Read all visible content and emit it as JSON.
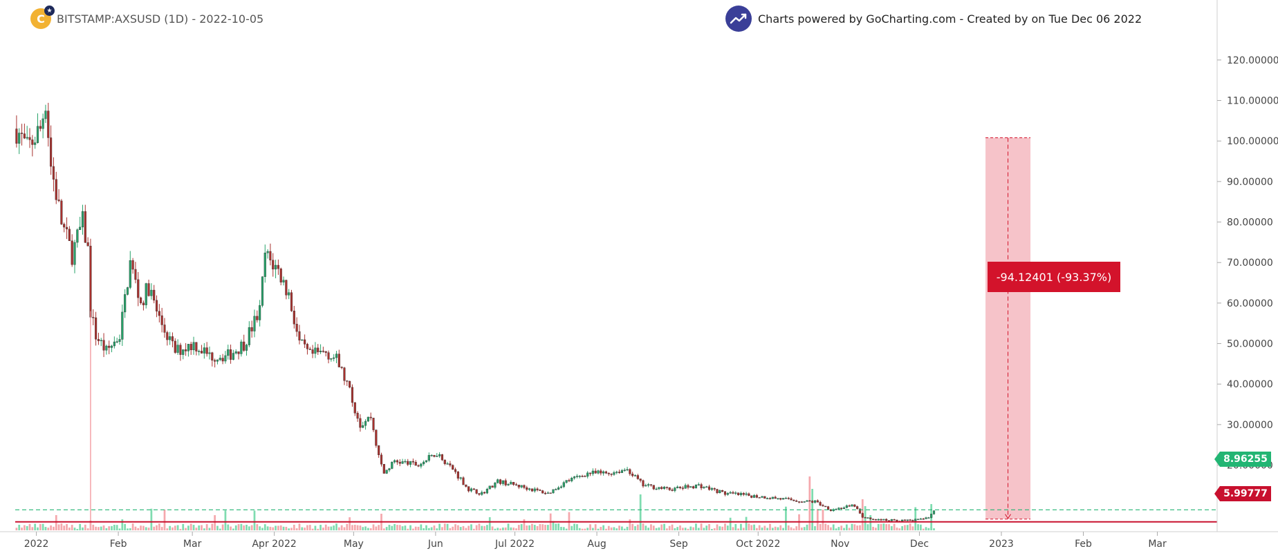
{
  "header": {
    "symbol_line": "BITSTAMP:AXSUSD (1D) - 2022-10-05",
    "credit": "Charts powered by GoCharting.com - Created by  on Tue Dec 06 2022"
  },
  "measure_label": "-94.12401 (-93.37%)",
  "price_tags": {
    "current": "8.96255",
    "low": "5.99777"
  },
  "colors": {
    "up": "#26a269",
    "down": "#a8312e",
    "volume_up": "#7fdcb0",
    "volume_down": "#f5a8ad",
    "measure_fill": "#f4b8c0",
    "measure_box": "#d3132b",
    "current_line": "#22b573",
    "low_line": "#c8102e"
  },
  "chart_data": {
    "type": "candlestick",
    "title": "BITSTAMP:AXSUSD (1D) - 2022-10-05",
    "y_axis": {
      "position": "right",
      "ticks": [
        "120.00000",
        "110.00000",
        "100.00000",
        "90.00000",
        "80.00000",
        "70.00000",
        "60.00000",
        "50.00000",
        "40.00000",
        "30.00000",
        "20.00000"
      ],
      "ylim": [
        0,
        121
      ]
    },
    "x_axis": {
      "ticks": [
        "2022",
        "Feb",
        "Mar",
        "Apr 2022",
        "May",
        "Jun",
        "Jul 2022",
        "Aug",
        "Sep",
        "Oct 2022",
        "Nov",
        "Dec",
        "2023",
        "Feb",
        "Mar"
      ]
    },
    "series": [
      {
        "name": "AXS/USD",
        "approx_close_path": [
          {
            "date": "2021-12-24",
            "close": 103
          },
          {
            "date": "2021-12-28",
            "close": 98
          },
          {
            "date": "2022-01-02",
            "close": 103
          },
          {
            "date": "2022-01-04",
            "close": 110
          },
          {
            "date": "2022-01-06",
            "close": 94
          },
          {
            "date": "2022-01-10",
            "close": 80
          },
          {
            "date": "2022-01-14",
            "close": 72
          },
          {
            "date": "2022-01-18",
            "close": 80
          },
          {
            "date": "2022-01-20",
            "close": 73
          },
          {
            "date": "2022-01-21",
            "close": 58
          },
          {
            "date": "2022-01-23",
            "close": 52
          },
          {
            "date": "2022-01-27",
            "close": 48
          },
          {
            "date": "2022-02-01",
            "close": 52
          },
          {
            "date": "2022-02-05",
            "close": 70
          },
          {
            "date": "2022-02-09",
            "close": 60
          },
          {
            "date": "2022-02-12",
            "close": 64
          },
          {
            "date": "2022-02-16",
            "close": 56
          },
          {
            "date": "2022-02-22",
            "close": 48
          },
          {
            "date": "2022-03-01",
            "close": 50
          },
          {
            "date": "2022-03-07",
            "close": 47
          },
          {
            "date": "2022-03-14",
            "close": 47
          },
          {
            "date": "2022-03-20",
            "close": 50
          },
          {
            "date": "2022-03-26",
            "close": 58
          },
          {
            "date": "2022-03-28",
            "close": 72
          },
          {
            "date": "2022-04-02",
            "close": 68
          },
          {
            "date": "2022-04-06",
            "close": 62
          },
          {
            "date": "2022-04-10",
            "close": 50
          },
          {
            "date": "2022-04-14",
            "close": 47
          },
          {
            "date": "2022-04-20",
            "close": 48
          },
          {
            "date": "2022-04-24",
            "close": 46
          },
          {
            "date": "2022-04-28",
            "close": 40
          },
          {
            "date": "2022-05-03",
            "close": 30
          },
          {
            "date": "2022-05-07",
            "close": 32
          },
          {
            "date": "2022-05-10",
            "close": 22
          },
          {
            "date": "2022-05-12",
            "close": 18
          },
          {
            "date": "2022-05-16",
            "close": 21
          },
          {
            "date": "2022-05-25",
            "close": 20
          },
          {
            "date": "2022-06-01",
            "close": 23
          },
          {
            "date": "2022-06-07",
            "close": 19
          },
          {
            "date": "2022-06-13",
            "close": 14
          },
          {
            "date": "2022-06-18",
            "close": 13
          },
          {
            "date": "2022-06-24",
            "close": 16
          },
          {
            "date": "2022-07-01",
            "close": 15
          },
          {
            "date": "2022-07-13",
            "close": 13
          },
          {
            "date": "2022-07-20",
            "close": 16
          },
          {
            "date": "2022-07-28",
            "close": 18
          },
          {
            "date": "2022-08-05",
            "close": 18
          },
          {
            "date": "2022-08-12",
            "close": 19
          },
          {
            "date": "2022-08-18",
            "close": 15
          },
          {
            "date": "2022-08-28",
            "close": 14
          },
          {
            "date": "2022-09-08",
            "close": 15
          },
          {
            "date": "2022-09-18",
            "close": 13
          },
          {
            "date": "2022-10-05",
            "close": 12
          },
          {
            "date": "2022-10-18",
            "close": 11
          },
          {
            "date": "2022-10-22",
            "close": 11
          },
          {
            "date": "2022-10-28",
            "close": 9
          },
          {
            "date": "2022-11-06",
            "close": 10
          },
          {
            "date": "2022-11-09",
            "close": 7
          },
          {
            "date": "2022-11-15",
            "close": 6.5
          },
          {
            "date": "2022-11-25",
            "close": 6.3
          },
          {
            "date": "2022-12-01",
            "close": 6.6
          },
          {
            "date": "2022-12-04",
            "close": 7
          },
          {
            "date": "2022-12-06",
            "close": 8.96
          }
        ]
      }
    ],
    "annotations": {
      "current_price": 8.96255,
      "low_line": 5.99777,
      "measure_from": 100.8,
      "measure_to": 6.68,
      "measure_change": -94.12401,
      "measure_change_pct": -93.37
    }
  }
}
